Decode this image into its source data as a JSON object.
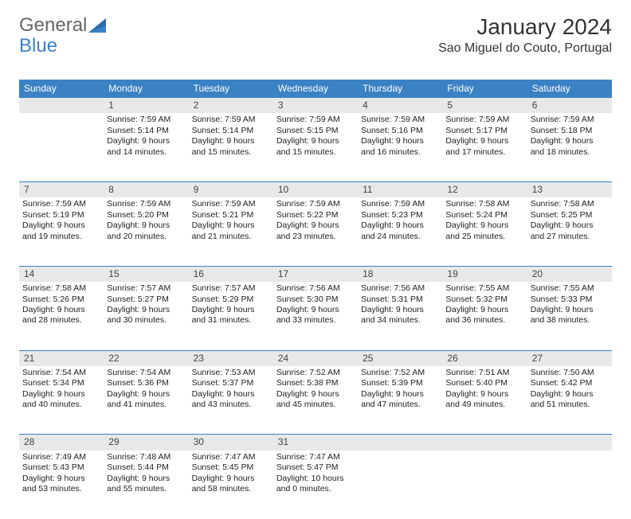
{
  "logo": {
    "text1": "General",
    "text2": "Blue"
  },
  "title": "January 2024",
  "location": "Sao Miguel do Couto, Portugal",
  "weekdays": [
    "Sunday",
    "Monday",
    "Tuesday",
    "Wednesday",
    "Thursday",
    "Friday",
    "Saturday"
  ],
  "colors": {
    "header_bg": "#3b82c4",
    "header_text": "#ffffff",
    "daynum_bg": "#e8e8e8",
    "border": "#3b82c4",
    "text": "#222222",
    "logo_gray": "#666666",
    "logo_blue": "#3b82c4"
  },
  "weeks": [
    [
      {
        "day": "",
        "lines": []
      },
      {
        "day": "1",
        "lines": [
          "Sunrise: 7:59 AM",
          "Sunset: 5:14 PM",
          "Daylight: 9 hours and 14 minutes."
        ]
      },
      {
        "day": "2",
        "lines": [
          "Sunrise: 7:59 AM",
          "Sunset: 5:14 PM",
          "Daylight: 9 hours and 15 minutes."
        ]
      },
      {
        "day": "3",
        "lines": [
          "Sunrise: 7:59 AM",
          "Sunset: 5:15 PM",
          "Daylight: 9 hours and 15 minutes."
        ]
      },
      {
        "day": "4",
        "lines": [
          "Sunrise: 7:59 AM",
          "Sunset: 5:16 PM",
          "Daylight: 9 hours and 16 minutes."
        ]
      },
      {
        "day": "5",
        "lines": [
          "Sunrise: 7:59 AM",
          "Sunset: 5:17 PM",
          "Daylight: 9 hours and 17 minutes."
        ]
      },
      {
        "day": "6",
        "lines": [
          "Sunrise: 7:59 AM",
          "Sunset: 5:18 PM",
          "Daylight: 9 hours and 18 minutes."
        ]
      }
    ],
    [
      {
        "day": "7",
        "lines": [
          "Sunrise: 7:59 AM",
          "Sunset: 5:19 PM",
          "Daylight: 9 hours and 19 minutes."
        ]
      },
      {
        "day": "8",
        "lines": [
          "Sunrise: 7:59 AM",
          "Sunset: 5:20 PM",
          "Daylight: 9 hours and 20 minutes."
        ]
      },
      {
        "day": "9",
        "lines": [
          "Sunrise: 7:59 AM",
          "Sunset: 5:21 PM",
          "Daylight: 9 hours and 21 minutes."
        ]
      },
      {
        "day": "10",
        "lines": [
          "Sunrise: 7:59 AM",
          "Sunset: 5:22 PM",
          "Daylight: 9 hours and 23 minutes."
        ]
      },
      {
        "day": "11",
        "lines": [
          "Sunrise: 7:59 AM",
          "Sunset: 5:23 PM",
          "Daylight: 9 hours and 24 minutes."
        ]
      },
      {
        "day": "12",
        "lines": [
          "Sunrise: 7:58 AM",
          "Sunset: 5:24 PM",
          "Daylight: 9 hours and 25 minutes."
        ]
      },
      {
        "day": "13",
        "lines": [
          "Sunrise: 7:58 AM",
          "Sunset: 5:25 PM",
          "Daylight: 9 hours and 27 minutes."
        ]
      }
    ],
    [
      {
        "day": "14",
        "lines": [
          "Sunrise: 7:58 AM",
          "Sunset: 5:26 PM",
          "Daylight: 9 hours and 28 minutes."
        ]
      },
      {
        "day": "15",
        "lines": [
          "Sunrise: 7:57 AM",
          "Sunset: 5:27 PM",
          "Daylight: 9 hours and 30 minutes."
        ]
      },
      {
        "day": "16",
        "lines": [
          "Sunrise: 7:57 AM",
          "Sunset: 5:29 PM",
          "Daylight: 9 hours and 31 minutes."
        ]
      },
      {
        "day": "17",
        "lines": [
          "Sunrise: 7:56 AM",
          "Sunset: 5:30 PM",
          "Daylight: 9 hours and 33 minutes."
        ]
      },
      {
        "day": "18",
        "lines": [
          "Sunrise: 7:56 AM",
          "Sunset: 5:31 PM",
          "Daylight: 9 hours and 34 minutes."
        ]
      },
      {
        "day": "19",
        "lines": [
          "Sunrise: 7:55 AM",
          "Sunset: 5:32 PM",
          "Daylight: 9 hours and 36 minutes."
        ]
      },
      {
        "day": "20",
        "lines": [
          "Sunrise: 7:55 AM",
          "Sunset: 5:33 PM",
          "Daylight: 9 hours and 38 minutes."
        ]
      }
    ],
    [
      {
        "day": "21",
        "lines": [
          "Sunrise: 7:54 AM",
          "Sunset: 5:34 PM",
          "Daylight: 9 hours and 40 minutes."
        ]
      },
      {
        "day": "22",
        "lines": [
          "Sunrise: 7:54 AM",
          "Sunset: 5:36 PM",
          "Daylight: 9 hours and 41 minutes."
        ]
      },
      {
        "day": "23",
        "lines": [
          "Sunrise: 7:53 AM",
          "Sunset: 5:37 PM",
          "Daylight: 9 hours and 43 minutes."
        ]
      },
      {
        "day": "24",
        "lines": [
          "Sunrise: 7:52 AM",
          "Sunset: 5:38 PM",
          "Daylight: 9 hours and 45 minutes."
        ]
      },
      {
        "day": "25",
        "lines": [
          "Sunrise: 7:52 AM",
          "Sunset: 5:39 PM",
          "Daylight: 9 hours and 47 minutes."
        ]
      },
      {
        "day": "26",
        "lines": [
          "Sunrise: 7:51 AM",
          "Sunset: 5:40 PM",
          "Daylight: 9 hours and 49 minutes."
        ]
      },
      {
        "day": "27",
        "lines": [
          "Sunrise: 7:50 AM",
          "Sunset: 5:42 PM",
          "Daylight: 9 hours and 51 minutes."
        ]
      }
    ],
    [
      {
        "day": "28",
        "lines": [
          "Sunrise: 7:49 AM",
          "Sunset: 5:43 PM",
          "Daylight: 9 hours and 53 minutes."
        ]
      },
      {
        "day": "29",
        "lines": [
          "Sunrise: 7:48 AM",
          "Sunset: 5:44 PM",
          "Daylight: 9 hours and 55 minutes."
        ]
      },
      {
        "day": "30",
        "lines": [
          "Sunrise: 7:47 AM",
          "Sunset: 5:45 PM",
          "Daylight: 9 hours and 58 minutes."
        ]
      },
      {
        "day": "31",
        "lines": [
          "Sunrise: 7:47 AM",
          "Sunset: 5:47 PM",
          "Daylight: 10 hours and 0 minutes."
        ]
      },
      {
        "day": "",
        "lines": []
      },
      {
        "day": "",
        "lines": []
      },
      {
        "day": "",
        "lines": []
      }
    ]
  ]
}
